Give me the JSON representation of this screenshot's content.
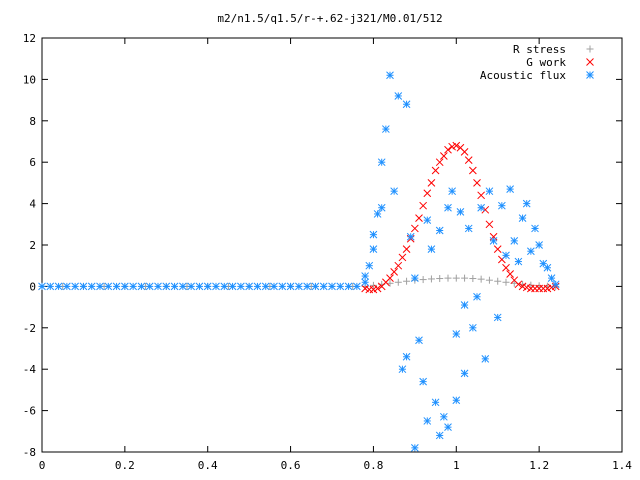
{
  "chart_data": {
    "type": "scatter",
    "title": "m2/n1.5/q1.5/r-+.62-j321/M0.01/512",
    "xlabel": "",
    "ylabel": "",
    "xlim": [
      0,
      1.4
    ],
    "ylim": [
      -8,
      12
    ],
    "xticks": [
      "0",
      "0.2",
      "0.4",
      "0.6",
      "0.8",
      "1",
      "1.2",
      "1.4"
    ],
    "yticks": [
      "12",
      "10",
      "8",
      "6",
      "4",
      "2",
      "0",
      "-2",
      "-4",
      "-6",
      "-8"
    ],
    "grid": false,
    "legend_position": "top-right",
    "series": [
      {
        "name": "R stress",
        "marker": "plus",
        "color": "#a0a0a0",
        "x": [
          0.0,
          0.05,
          0.1,
          0.15,
          0.2,
          0.25,
          0.3,
          0.35,
          0.4,
          0.45,
          0.5,
          0.55,
          0.6,
          0.65,
          0.7,
          0.75,
          0.78,
          0.8,
          0.82,
          0.84,
          0.86,
          0.88,
          0.9,
          0.92,
          0.94,
          0.96,
          0.98,
          1.0,
          1.02,
          1.04,
          1.06,
          1.08,
          1.1,
          1.12,
          1.14,
          1.16,
          1.18,
          1.2,
          1.22,
          1.24
        ],
        "y": [
          0,
          0,
          0,
          0,
          0,
          0,
          0,
          0,
          0,
          0,
          0,
          0,
          0,
          0,
          0,
          0,
          0,
          0.05,
          0.1,
          0.15,
          0.2,
          0.25,
          0.3,
          0.33,
          0.36,
          0.38,
          0.4,
          0.4,
          0.4,
          0.38,
          0.35,
          0.3,
          0.25,
          0.2,
          0.15,
          0.1,
          0.06,
          0.03,
          0.01,
          0
        ]
      },
      {
        "name": "G work",
        "marker": "cross",
        "color": "#ff0000",
        "x": [
          0.78,
          0.79,
          0.8,
          0.81,
          0.82,
          0.83,
          0.84,
          0.85,
          0.86,
          0.87,
          0.88,
          0.89,
          0.9,
          0.91,
          0.92,
          0.93,
          0.94,
          0.95,
          0.96,
          0.97,
          0.98,
          0.99,
          1.0,
          1.01,
          1.02,
          1.03,
          1.04,
          1.05,
          1.06,
          1.07,
          1.08,
          1.09,
          1.1,
          1.11,
          1.12,
          1.13,
          1.14,
          1.15,
          1.16,
          1.17,
          1.18,
          1.19,
          1.2,
          1.21,
          1.22,
          1.23,
          1.24
        ],
        "y": [
          -0.1,
          -0.15,
          -0.15,
          -0.1,
          0.0,
          0.2,
          0.4,
          0.7,
          1.0,
          1.4,
          1.8,
          2.3,
          2.8,
          3.3,
          3.9,
          4.5,
          5.0,
          5.6,
          6.0,
          6.3,
          6.6,
          6.75,
          6.8,
          6.7,
          6.5,
          6.1,
          5.6,
          5.0,
          4.4,
          3.7,
          3.0,
          2.4,
          1.8,
          1.3,
          0.9,
          0.6,
          0.3,
          0.1,
          0.0,
          -0.05,
          -0.1,
          -0.1,
          -0.1,
          -0.1,
          -0.1,
          -0.05,
          0.0
        ]
      },
      {
        "name": "Acoustic flux",
        "marker": "star",
        "color": "#1e90ff",
        "x": [
          0.0,
          0.02,
          0.04,
          0.06,
          0.08,
          0.1,
          0.12,
          0.14,
          0.16,
          0.18,
          0.2,
          0.22,
          0.24,
          0.26,
          0.28,
          0.3,
          0.32,
          0.34,
          0.36,
          0.38,
          0.4,
          0.42,
          0.44,
          0.46,
          0.48,
          0.5,
          0.52,
          0.54,
          0.56,
          0.58,
          0.6,
          0.62,
          0.64,
          0.66,
          0.68,
          0.7,
          0.72,
          0.74,
          0.76,
          0.78,
          0.78,
          0.79,
          0.8,
          0.8,
          0.81,
          0.82,
          0.82,
          0.83,
          0.84,
          0.85,
          0.86,
          0.87,
          0.88,
          0.88,
          0.89,
          0.9,
          0.9,
          0.91,
          0.92,
          0.93,
          0.93,
          0.94,
          0.95,
          0.96,
          0.96,
          0.97,
          0.98,
          0.98,
          0.99,
          1.0,
          1.0,
          1.01,
          1.02,
          1.02,
          1.03,
          1.04,
          1.05,
          1.06,
          1.07,
          1.08,
          1.09,
          1.1,
          1.11,
          1.12,
          1.13,
          1.14,
          1.15,
          1.16,
          1.17,
          1.18,
          1.19,
          1.2,
          1.21,
          1.22,
          1.23,
          1.24
        ],
        "y": [
          0,
          0,
          0,
          0,
          0,
          0,
          0,
          0,
          0,
          0,
          0,
          0,
          0,
          0,
          0,
          0,
          0,
          0,
          0,
          0,
          0,
          0,
          0,
          0,
          0,
          0,
          0,
          0,
          0,
          0,
          0,
          0,
          0,
          0,
          0,
          0,
          0,
          0,
          0,
          0.5,
          0.2,
          1.0,
          1.8,
          2.5,
          3.5,
          6.0,
          3.8,
          7.6,
          10.2,
          4.6,
          9.2,
          -4.0,
          8.8,
          -3.4,
          2.4,
          -7.8,
          0.4,
          -2.6,
          -4.6,
          3.2,
          -6.5,
          1.8,
          -5.6,
          -7.2,
          2.7,
          -6.3,
          3.8,
          -6.8,
          4.6,
          -2.3,
          -5.5,
          3.6,
          -0.9,
          -4.2,
          2.8,
          -2.0,
          -0.5,
          3.8,
          -3.5,
          4.6,
          2.2,
          -1.5,
          3.9,
          1.5,
          4.7,
          2.2,
          1.2,
          3.3,
          4.0,
          1.7,
          2.8,
          2.0,
          1.1,
          0.9,
          0.4,
          0.1
        ]
      }
    ]
  }
}
